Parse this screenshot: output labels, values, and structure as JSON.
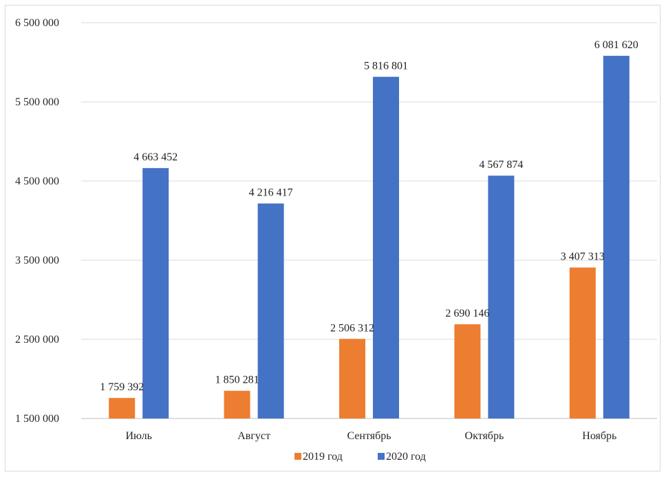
{
  "chart_data": {
    "type": "bar",
    "categories": [
      "Июль",
      "Август",
      "Сентябрь",
      "Октябрь",
      "Ноябрь"
    ],
    "series": [
      {
        "name": "2019 год",
        "color": "#ED7D31",
        "values": [
          1759392,
          1850281,
          2506312,
          2690146,
          3407313
        ],
        "labels": [
          "1 759 392",
          "1 850 281",
          "2 506 312",
          "2 690 146",
          "3 407 313"
        ]
      },
      {
        "name": "2020 год",
        "color": "#4472C4",
        "values": [
          4663452,
          4216417,
          5816801,
          4567874,
          6081620
        ],
        "labels": [
          "4 663 452",
          "4 216 417",
          "5 816 801",
          "4 567 874",
          "6 081 620"
        ]
      }
    ],
    "ylim": [
      1500000,
      6500000
    ],
    "yticks": [
      1500000,
      2500000,
      3500000,
      4500000,
      5500000,
      6500000
    ],
    "ytick_labels": [
      "1 500 000",
      "2 500 000",
      "3 500 000",
      "4 500 000",
      "5 500 000",
      "6 500 000"
    ],
    "title": "",
    "xlabel": "",
    "ylabel": "",
    "grid": true,
    "legend_position": "bottom"
  }
}
